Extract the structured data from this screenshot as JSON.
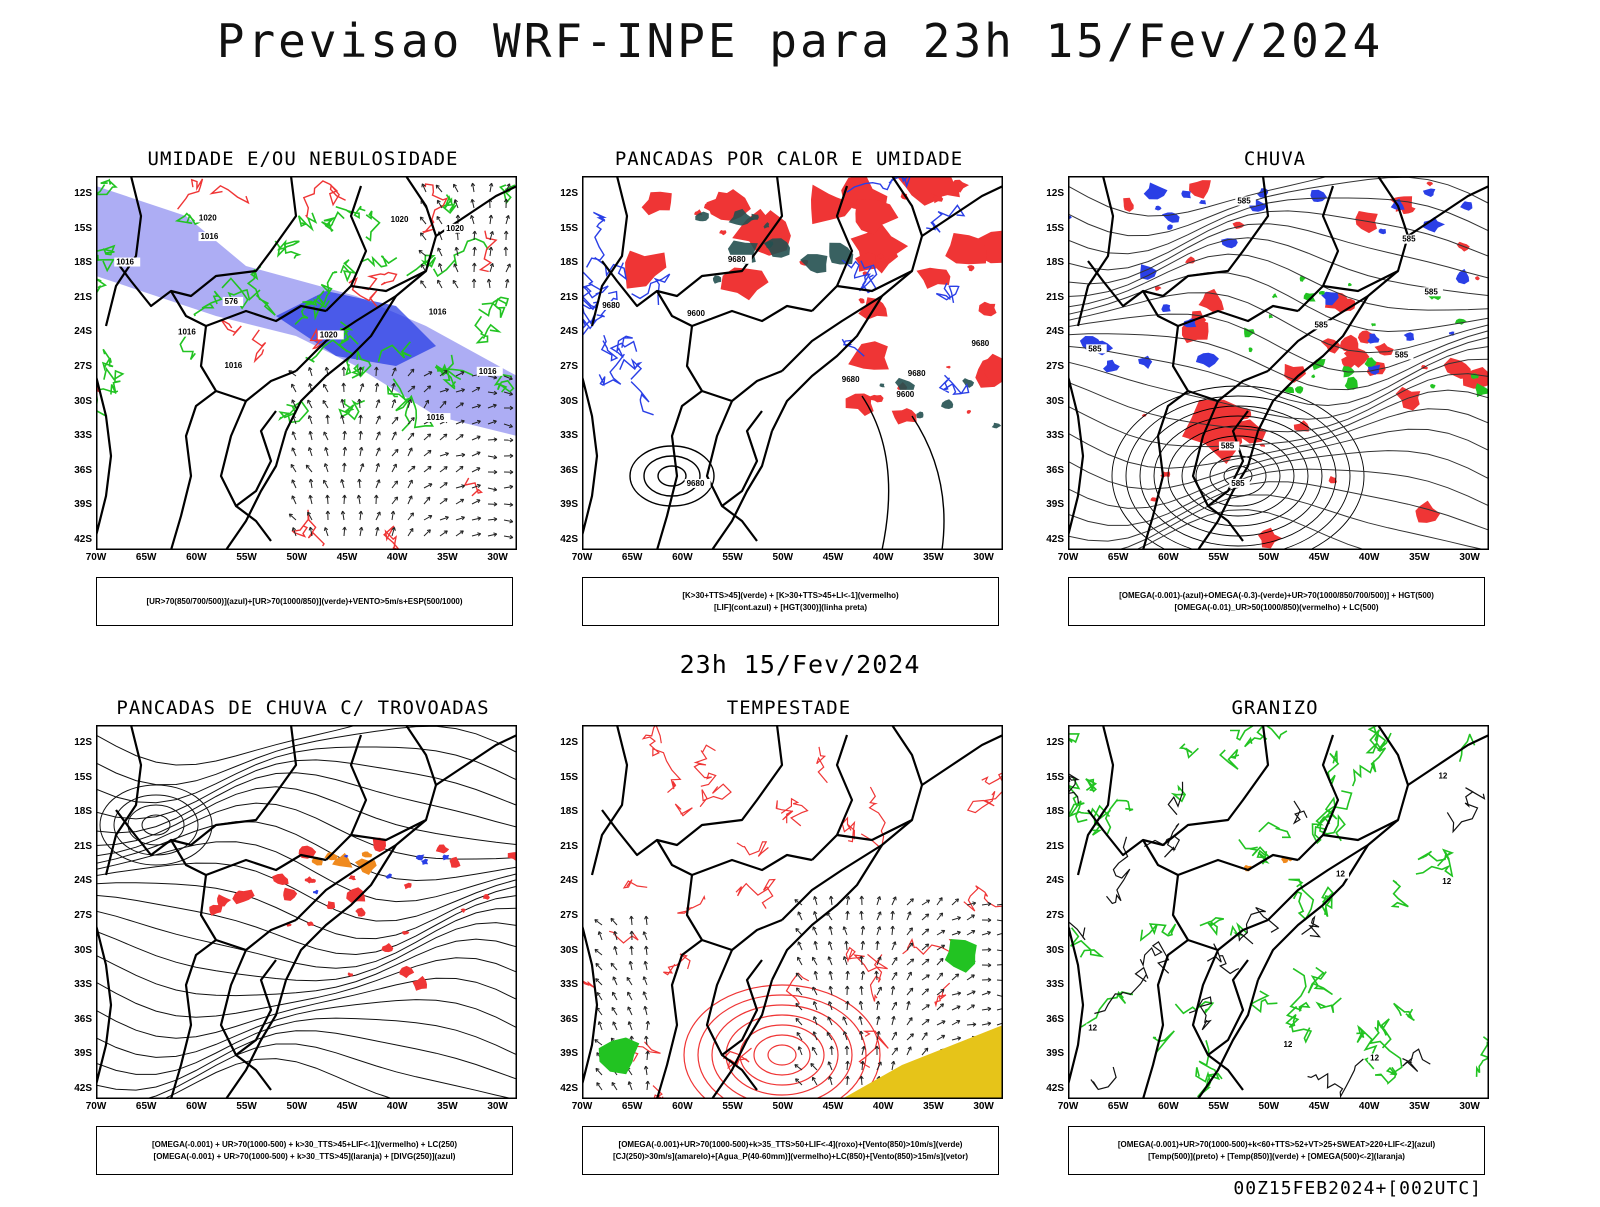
{
  "title": "Previsao WRF-INPE  para 23h 15/Fev/2024",
  "subtitle": "23h 15/Fev/2024",
  "footer": "00Z15FEB2024+[002UTC]",
  "axes": {
    "lat_labels": [
      "12S",
      "15S",
      "18S",
      "21S",
      "24S",
      "27S",
      "30S",
      "33S",
      "36S",
      "39S",
      "42S"
    ],
    "lon_labels": [
      "70W",
      "65W",
      "60W",
      "55W",
      "50W",
      "45W",
      "40W",
      "35W",
      "30W"
    ]
  },
  "colors": {
    "red": "#ef3535",
    "green": "#22c322",
    "blue": "#2a3fe6",
    "lilac": "#8a8aef",
    "darkteal": "#245050",
    "orange": "#f08a1e",
    "yellow": "#e6c419",
    "border": "#000000"
  },
  "panels": [
    {
      "title": "UMIDADE E/OU NEBULOSIDADE",
      "legend": [
        "[UR>70(850/700/500)](azul)+[UR>70(1000/850)](verde)+VENTO>5m/s+ESP(500/1000)"
      ],
      "contour_labels": [
        "1016",
        "1020",
        "576",
        "1016",
        "1020",
        "1016",
        "1016",
        "1020",
        "1016",
        "1016",
        "1020",
        "1016"
      ]
    },
    {
      "title": "PANCADAS POR CALOR E UMIDADE",
      "legend": [
        "[K>30+TTS>45](verde) + [K>30+TTS>45+LI<-1](vermelho)",
        "[LIF](cont.azul) + [HGT(300)](linha preta)"
      ],
      "contour_labels": [
        "9680",
        "9680",
        "9680",
        "9680",
        "9600",
        "9680",
        "9680",
        "9600"
      ]
    },
    {
      "title": "CHUVA",
      "legend": [
        "[OMEGA(-0.001)-(azul)+OMEGA(-0.3)-(verde)+UR>70(1000/850/700/500)] + HGT(500)",
        "[OMEGA(-0.01)_UR>50(1000/850)(vermelho) + LC(500)"
      ],
      "contour_labels": [
        "585",
        "585",
        "585",
        "585",
        "585",
        "585",
        "585",
        "585"
      ]
    },
    {
      "title": "PANCADAS DE CHUVA C/ TROVOADAS",
      "legend": [
        "[OMEGA(-0.001) + UR>70(1000-500) + k>30_TTS>45+LIF<-1](vermelho) + LC(250)",
        "[OMEGA(-0.001) + UR>70(1000-500) + k>30_TTS>45](laranja) + [DIVG(250)](azul)"
      ],
      "contour_labels": []
    },
    {
      "title": "TEMPESTADE",
      "legend": [
        "[OMEGA(-0.001)+UR>70(1000-500)+k>35_TTS>50+LIF<-4](roxo)+[Vento(850)>10m/s](verde)",
        "[CJ(250)>30m/s](amarelo)+[Agua_P(40-60mm)](vermelho)+LC(850)+[Vento(850)>15m/s](vetor)"
      ],
      "contour_labels": []
    },
    {
      "title": "GRANIZO",
      "legend": [
        "[OMEGA(-0.001)+UR>70(1000-500)+k<60+TTS>52+VT>25+SWEAT>220+LIF<-2](azul)",
        "[Temp(500)](preto) + [Temp(850)](verde) + [OMEGA(500)<-2](laranja)"
      ],
      "contour_labels": [
        "12",
        "12",
        "12",
        "12",
        "12",
        "12"
      ]
    }
  ]
}
